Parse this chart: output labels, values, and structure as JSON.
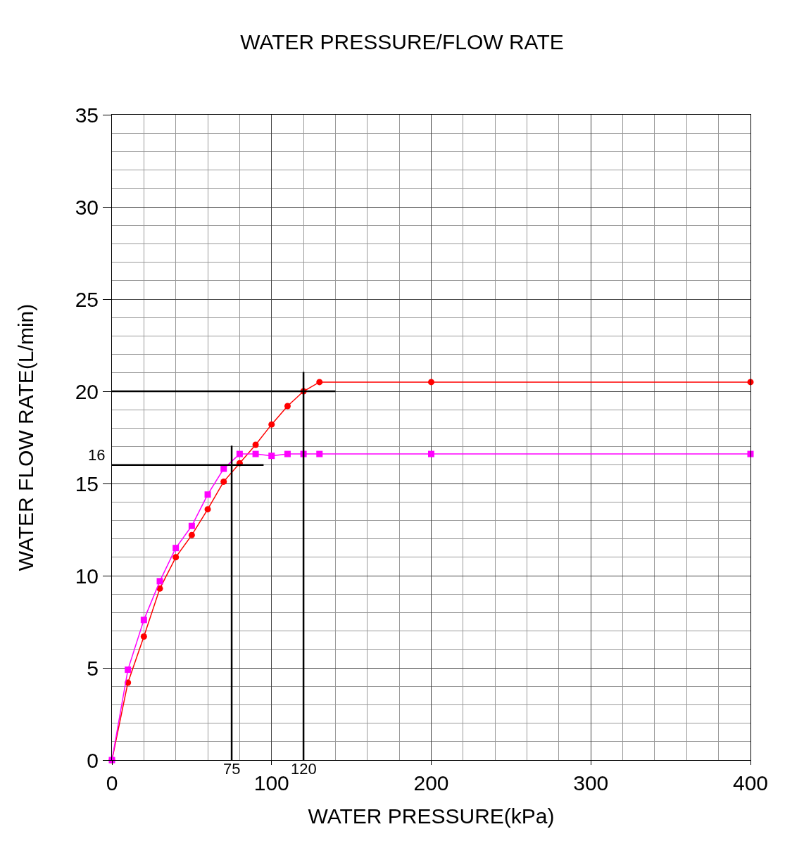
{
  "chart_data": {
    "type": "line",
    "title": "WATER PRESSURE/FLOW RATE",
    "xlabel": "WATER PRESSURE(kPa)",
    "ylabel": "WATER FLOW RATE(L/min)",
    "x": [
      0,
      10,
      20,
      30,
      40,
      50,
      60,
      70,
      80,
      90,
      100,
      110,
      120,
      130,
      200,
      400
    ],
    "series": [
      {
        "color": "#ff0000",
        "marker": "circle",
        "values": [
          0,
          4.2,
          6.7,
          9.3,
          11.0,
          12.2,
          13.6,
          15.1,
          16.1,
          17.1,
          18.2,
          19.2,
          20.0,
          20.5,
          20.5,
          20.5
        ]
      },
      {
        "color": "#ff00ff",
        "marker": "square",
        "values": [
          0,
          4.9,
          7.6,
          9.7,
          11.5,
          12.7,
          14.4,
          15.8,
          16.6,
          16.6,
          16.5,
          16.6,
          16.6,
          16.6,
          16.6,
          16.6
        ]
      }
    ],
    "xlim": [
      0,
      400
    ],
    "xticks": [
      0,
      100,
      200,
      300,
      400
    ],
    "ylim": [
      0,
      35
    ],
    "yticks": [
      0,
      5,
      10,
      15,
      20,
      25,
      30,
      35
    ],
    "grid": true,
    "ref_lines": [
      {
        "axis": "y",
        "value": 20,
        "color": "#000000"
      },
      {
        "axis": "x",
        "value": 120,
        "label": "120",
        "color": "#000000"
      },
      {
        "axis": "y",
        "value": 16,
        "label": "16",
        "color": "#000000"
      },
      {
        "axis": "x",
        "value": 75,
        "label": "75",
        "color": "#000000"
      }
    ]
  }
}
